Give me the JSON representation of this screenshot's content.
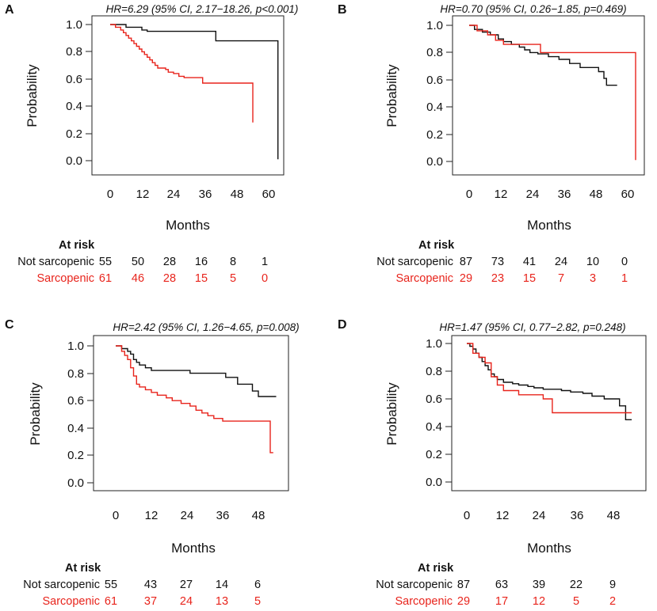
{
  "figure": {
    "common": {
      "xlabel": "Months",
      "ylabel": "Probability",
      "at_risk_label": "At risk"
    },
    "colors": {
      "not_sarcopenic": "#111111",
      "sarcopenic": "#e8241c",
      "frame": "#222222"
    }
  },
  "chart_data": [
    {
      "panel": "A",
      "type": "line",
      "title": "HR=6.29 (95% CI, 2.17−18.26, p<0.001)",
      "xlabel": "Months",
      "ylabel": "Probability",
      "xlim": [
        -3,
        66
      ],
      "ylim": [
        0,
        1
      ],
      "xticks": [
        0,
        12,
        24,
        36,
        48,
        60
      ],
      "yticks": [
        "0.0",
        "0.2",
        "0.4",
        "0.6",
        "0.8",
        "1.0"
      ],
      "series": [
        {
          "name": "Not sarcopenic",
          "color": "#111111",
          "points": [
            [
              0,
              1
            ],
            [
              6,
              0.98
            ],
            [
              12,
              0.96
            ],
            [
              14,
              0.95
            ],
            [
              40,
              0.95
            ],
            [
              40,
              0.88
            ],
            [
              63.5,
              0.88
            ],
            [
              63.5,
              0.01
            ]
          ]
        },
        {
          "name": "Sarcopenic",
          "color": "#e8241c",
          "points": [
            [
              0,
              1
            ],
            [
              2,
              0.98
            ],
            [
              4,
              0.96
            ],
            [
              5,
              0.94
            ],
            [
              6,
              0.92
            ],
            [
              7,
              0.9
            ],
            [
              8,
              0.88
            ],
            [
              9,
              0.86
            ],
            [
              10,
              0.84
            ],
            [
              11,
              0.82
            ],
            [
              12,
              0.8
            ],
            [
              13,
              0.78
            ],
            [
              14,
              0.76
            ],
            [
              15,
              0.74
            ],
            [
              16,
              0.72
            ],
            [
              17,
              0.7
            ],
            [
              18,
              0.68
            ],
            [
              21,
              0.67
            ],
            [
              22,
              0.65
            ],
            [
              24,
              0.64
            ],
            [
              26,
              0.62
            ],
            [
              28,
              0.61
            ],
            [
              35,
              0.61
            ],
            [
              35,
              0.57
            ],
            [
              54,
              0.57
            ],
            [
              54,
              0.28
            ]
          ]
        }
      ],
      "at_risk": [
        {
          "group": "Not sarcopenic",
          "color": "#111111",
          "counts": [
            "55",
            "50",
            "28",
            "16",
            "8",
            "1"
          ]
        },
        {
          "group": "Sarcopenic",
          "color": "#e8241c",
          "counts": [
            "61",
            "46",
            "28",
            "15",
            "5",
            "0"
          ]
        }
      ]
    },
    {
      "panel": "B",
      "type": "line",
      "title": "HR=0.70 (95% CI, 0.26−1.85, p=0.469)",
      "xlabel": "Months",
      "ylabel": "Probability",
      "xlim": [
        -3,
        66
      ],
      "ylim": [
        0,
        1
      ],
      "xticks": [
        0,
        12,
        24,
        36,
        48,
        60
      ],
      "yticks": [
        "0.0",
        "0.2",
        "0.4",
        "0.6",
        "0.8",
        "1.0"
      ],
      "series": [
        {
          "name": "Not sarcopenic",
          "color": "#111111",
          "points": [
            [
              0,
              1
            ],
            [
              2,
              0.97
            ],
            [
              5,
              0.95
            ],
            [
              8,
              0.93
            ],
            [
              11,
              0.9
            ],
            [
              13,
              0.88
            ],
            [
              16,
              0.86
            ],
            [
              19,
              0.84
            ],
            [
              21,
              0.82
            ],
            [
              23,
              0.8
            ],
            [
              26,
              0.79
            ],
            [
              30,
              0.77
            ],
            [
              34,
              0.75
            ],
            [
              38,
              0.72
            ],
            [
              42,
              0.69
            ],
            [
              49,
              0.66
            ],
            [
              51,
              0.61
            ],
            [
              52,
              0.56
            ],
            [
              56,
              0.56
            ]
          ]
        },
        {
          "name": "Sarcopenic",
          "color": "#e8241c",
          "points": [
            [
              0,
              1
            ],
            [
              3,
              0.96
            ],
            [
              7,
              0.93
            ],
            [
              10,
              0.89
            ],
            [
              13,
              0.86
            ],
            [
              27,
              0.86
            ],
            [
              27,
              0.8
            ],
            [
              63,
              0.8
            ],
            [
              63,
              0.01
            ]
          ]
        }
      ],
      "at_risk": [
        {
          "group": "Not sarcopenic",
          "color": "#111111",
          "counts": [
            "87",
            "73",
            "41",
            "24",
            "10",
            "0"
          ]
        },
        {
          "group": "Sarcopenic",
          "color": "#e8241c",
          "counts": [
            "29",
            "23",
            "15",
            "7",
            "3",
            "1"
          ]
        }
      ]
    },
    {
      "panel": "C",
      "type": "line",
      "title": "HR=2.42 (95% CI, 1.26−4.65, p=0.008)",
      "xlabel": "Months",
      "ylabel": "Probability",
      "xlim": [
        -2,
        55
      ],
      "ylim": [
        0,
        1
      ],
      "xticks": [
        0,
        12,
        24,
        36,
        48
      ],
      "yticks": [
        "0.0",
        "0.2",
        "0.4",
        "0.6",
        "0.8",
        "1.0"
      ],
      "series": [
        {
          "name": "Not sarcopenic",
          "color": "#111111",
          "points": [
            [
              0,
              1
            ],
            [
              2,
              0.98
            ],
            [
              4,
              0.96
            ],
            [
              5,
              0.94
            ],
            [
              6,
              0.9
            ],
            [
              7,
              0.88
            ],
            [
              8,
              0.86
            ],
            [
              10,
              0.84
            ],
            [
              12,
              0.82
            ],
            [
              24,
              0.82
            ],
            [
              25,
              0.8
            ],
            [
              36,
              0.8
            ],
            [
              37,
              0.77
            ],
            [
              40,
              0.77
            ],
            [
              41,
              0.72
            ],
            [
              45,
              0.72
            ],
            [
              46,
              0.67
            ],
            [
              48,
              0.63
            ],
            [
              54,
              0.63
            ]
          ]
        },
        {
          "name": "Sarcopenic",
          "color": "#e8241c",
          "points": [
            [
              0,
              1
            ],
            [
              2,
              0.96
            ],
            [
              3,
              0.93
            ],
            [
              4,
              0.9
            ],
            [
              5,
              0.84
            ],
            [
              6,
              0.78
            ],
            [
              7,
              0.72
            ],
            [
              8,
              0.7
            ],
            [
              10,
              0.68
            ],
            [
              12,
              0.66
            ],
            [
              14,
              0.64
            ],
            [
              17,
              0.62
            ],
            [
              19,
              0.6
            ],
            [
              22,
              0.58
            ],
            [
              25,
              0.56
            ],
            [
              27,
              0.53
            ],
            [
              29,
              0.51
            ],
            [
              31,
              0.49
            ],
            [
              33,
              0.47
            ],
            [
              36,
              0.45
            ],
            [
              52,
              0.45
            ],
            [
              52,
              0.22
            ],
            [
              53,
              0.22
            ]
          ]
        }
      ],
      "at_risk": [
        {
          "group": "Not sarcopenic",
          "color": "#111111",
          "counts": [
            "55",
            "43",
            "27",
            "14",
            "6"
          ]
        },
        {
          "group": "Sarcopenic",
          "color": "#e8241c",
          "counts": [
            "61",
            "37",
            "24",
            "13",
            "5"
          ]
        }
      ]
    },
    {
      "panel": "D",
      "type": "line",
      "title": "HR=1.47 (95% CI, 0.77−2.82, p=0.248)",
      "xlabel": "Months",
      "ylabel": "Probability",
      "xlim": [
        -2,
        55
      ],
      "ylim": [
        0,
        1
      ],
      "xticks": [
        0,
        12,
        24,
        36,
        48
      ],
      "yticks": [
        "0.0",
        "0.2",
        "0.4",
        "0.6",
        "0.8",
        "1.0"
      ],
      "series": [
        {
          "name": "Not sarcopenic",
          "color": "#111111",
          "points": [
            [
              0,
              1
            ],
            [
              1,
              0.98
            ],
            [
              2,
              0.96
            ],
            [
              3,
              0.93
            ],
            [
              4,
              0.9
            ],
            [
              5,
              0.87
            ],
            [
              6,
              0.84
            ],
            [
              7,
              0.81
            ],
            [
              8,
              0.78
            ],
            [
              9,
              0.76
            ],
            [
              10,
              0.74
            ],
            [
              12,
              0.72
            ],
            [
              15,
              0.71
            ],
            [
              17,
              0.7
            ],
            [
              20,
              0.69
            ],
            [
              22,
              0.68
            ],
            [
              25,
              0.67
            ],
            [
              29,
              0.67
            ],
            [
              31,
              0.66
            ],
            [
              34,
              0.65
            ],
            [
              38,
              0.64
            ],
            [
              41,
              0.62
            ],
            [
              45,
              0.6
            ],
            [
              50,
              0.55
            ],
            [
              52,
              0.45
            ],
            [
              54,
              0.45
            ]
          ]
        },
        {
          "name": "Sarcopenic",
          "color": "#e8241c",
          "points": [
            [
              0,
              1
            ],
            [
              2,
              0.93
            ],
            [
              4,
              0.9
            ],
            [
              6,
              0.86
            ],
            [
              8,
              0.76
            ],
            [
              10,
              0.7
            ],
            [
              12,
              0.66
            ],
            [
              16,
              0.66
            ],
            [
              17,
              0.63
            ],
            [
              24,
              0.63
            ],
            [
              25,
              0.6
            ],
            [
              27,
              0.6
            ],
            [
              28,
              0.5
            ],
            [
              54,
              0.5
            ]
          ]
        }
      ],
      "at_risk": [
        {
          "group": "Not sarcopenic",
          "color": "#111111",
          "counts": [
            "87",
            "63",
            "39",
            "22",
            "9"
          ]
        },
        {
          "group": "Sarcopenic",
          "color": "#e8241c",
          "counts": [
            "29",
            "17",
            "12",
            "5",
            "2"
          ]
        }
      ]
    }
  ]
}
